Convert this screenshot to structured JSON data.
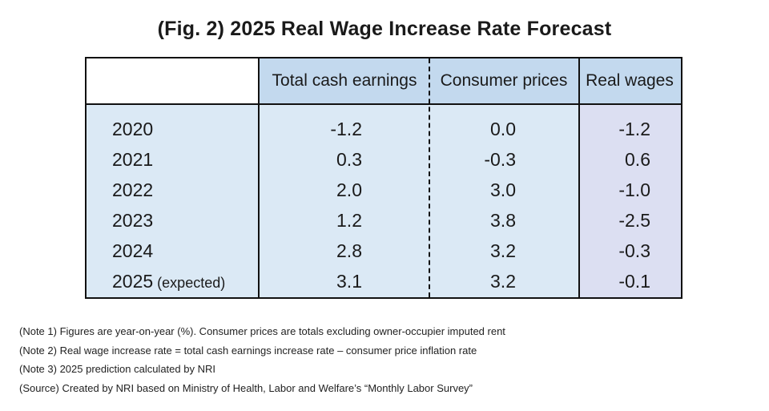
{
  "title": "(Fig. 2) 2025 Real Wage Increase Rate Forecast",
  "colors": {
    "header_bg": "#c3d9ee",
    "body_bg": "#dbe9f5",
    "real_wage_bg": "#dcdff2",
    "border": "#111111"
  },
  "chart_data": {
    "type": "table",
    "title": "(Fig. 2) 2025 Real Wage Increase Rate Forecast",
    "columns": [
      "",
      "Total cash earnings",
      "Consumer prices",
      "Real wages"
    ],
    "rows": [
      {
        "year": "2020",
        "note": "",
        "total_cash_earnings": "-1.2",
        "consumer_prices": "0.0",
        "real_wages": "-1.2"
      },
      {
        "year": "2021",
        "note": "",
        "total_cash_earnings": "0.3",
        "consumer_prices": "-0.3",
        "real_wages": "0.6"
      },
      {
        "year": "2022",
        "note": "",
        "total_cash_earnings": "2.0",
        "consumer_prices": "3.0",
        "real_wages": "-1.0"
      },
      {
        "year": "2023",
        "note": "",
        "total_cash_earnings": "1.2",
        "consumer_prices": "3.8",
        "real_wages": "-2.5"
      },
      {
        "year": "2024",
        "note": "",
        "total_cash_earnings": "2.8",
        "consumer_prices": "3.2",
        "real_wages": "-0.3"
      },
      {
        "year": "2025",
        "note": "(expected)",
        "total_cash_earnings": "3.1",
        "consumer_prices": "3.2",
        "real_wages": "-0.1"
      }
    ]
  },
  "notes": [
    "(Note 1) Figures are year-on-year (%). Consumer prices are totals excluding owner-occupier imputed rent",
    "(Note 2) Real wage increase rate = total cash earnings increase rate – consumer price inflation rate",
    "(Note 3) 2025 prediction calculated by NRI",
    "(Source) Created by NRI based on Ministry of Health, Labor and Welfare’s “Monthly Labor Survey”"
  ]
}
